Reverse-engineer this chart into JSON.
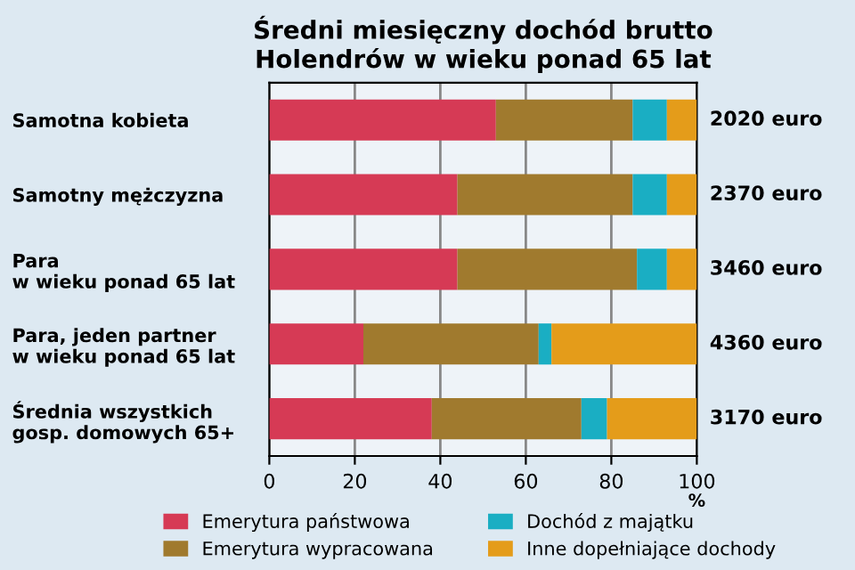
{
  "chart_data": {
    "type": "bar",
    "orientation": "horizontal",
    "stacked": true,
    "title": "Średni miesięczny dochód brutto\nHolendrów w wieku ponad 65 lat",
    "categories": [
      "Samotna kobieta",
      "Samotny mężczyzna",
      "Para\nw wieku ponad 65 lat",
      "Para, jeden partner\nw wieku ponad 65 lat",
      "Średnia wszystkich\ngosp. domowych 65+"
    ],
    "series": [
      {
        "name": "Emerytura państwowa",
        "color": "#d63a55",
        "values": [
          53,
          44,
          44,
          22,
          38
        ]
      },
      {
        "name": "Emerytura wypracowana",
        "color": "#a07a2e",
        "values": [
          32,
          41,
          42,
          41,
          35
        ]
      },
      {
        "name": "Dochód z majątku",
        "color": "#1aaec3",
        "values": [
          8,
          8,
          7,
          3,
          6
        ]
      },
      {
        "name": "Inne dopełniające dochody",
        "color": "#e49c1a",
        "values": [
          7,
          7,
          7,
          34,
          21
        ]
      }
    ],
    "annotations": [
      "2020 euro",
      "2370 euro",
      "3460 euro",
      "4360 euro",
      "3170 euro"
    ],
    "xlabel": "%",
    "xlim": [
      0,
      100
    ],
    "xticks": [
      0,
      20,
      40,
      60,
      80,
      100
    ],
    "grid": "x",
    "legend": "bottom"
  }
}
